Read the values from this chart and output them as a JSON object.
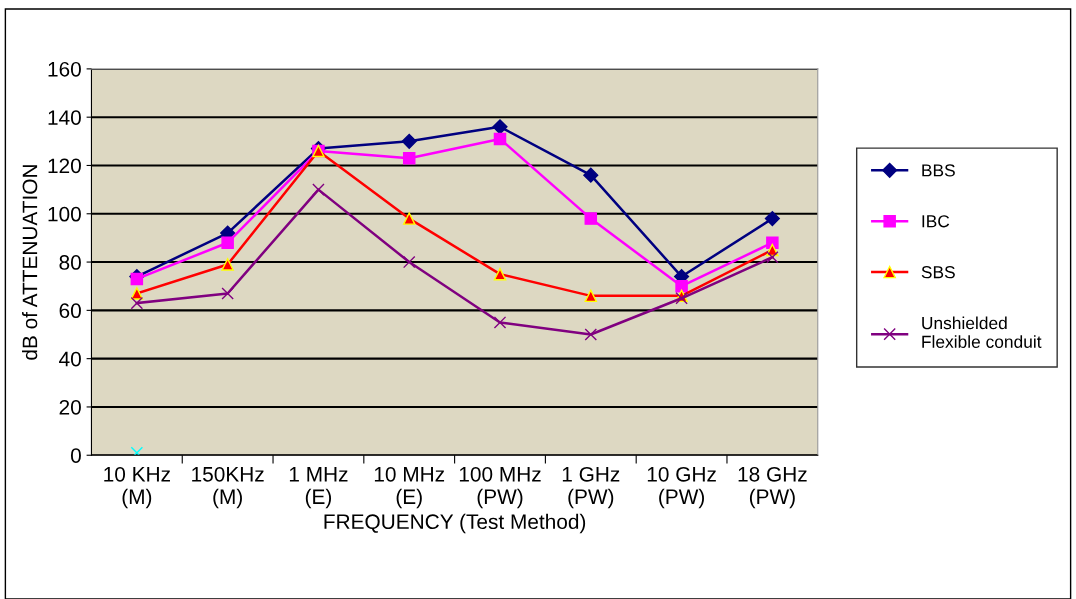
{
  "chart_data": {
    "type": "line",
    "xlabel": "FREQUENCY (Test Method)",
    "ylabel": "dB of ATTENUATION",
    "categories": [
      "10 KHz\n(M)",
      "150KHz\n(M)",
      "1 MHz\n(E)",
      "10 MHz\n(E)",
      "100 MHz\n(PW)",
      "1 GHz\n(PW)",
      "10 GHz\n(PW)",
      "18 GHz\n(PW)"
    ],
    "series": [
      {
        "name": "BBS",
        "color": "#000080",
        "marker": "diamond",
        "values": [
          74,
          92,
          127,
          130,
          136,
          116,
          74,
          98
        ]
      },
      {
        "name": "IBC",
        "color": "#ff00ff",
        "marker": "square",
        "values": [
          73,
          88,
          126,
          123,
          131,
          98,
          70,
          88
        ]
      },
      {
        "name": "SBS",
        "color": "#ff0000",
        "marker": "triangle",
        "values": [
          67,
          79,
          126,
          98,
          75,
          66,
          66,
          85
        ]
      },
      {
        "name": "Unshielded\nFlexible conduit",
        "color": "#800080",
        "marker": "cross",
        "values": [
          63,
          67,
          110,
          80,
          55,
          50,
          65,
          82
        ]
      },
      {
        "type": "scatter",
        "color": "#00ffff",
        "marker": "cross",
        "values": [
          1,
          null,
          null,
          null,
          null,
          null,
          null,
          null
        ]
      }
    ],
    "ylim": [
      0,
      160
    ],
    "yticks": [
      0,
      20,
      40,
      60,
      80,
      100,
      120,
      140,
      160
    ],
    "grid": "y",
    "legend": "right",
    "line_style": "solid"
  }
}
